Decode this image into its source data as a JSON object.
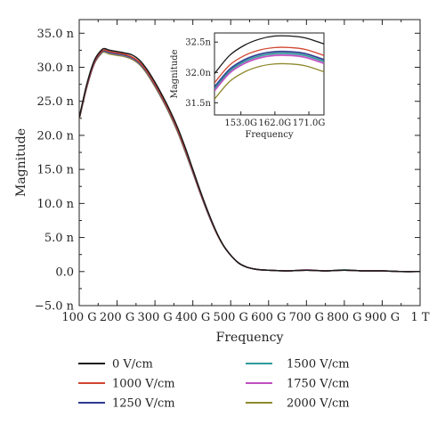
{
  "chart_data": [
    {
      "type": "line",
      "xlabel": "Frequency",
      "ylabel": "Magnitude",
      "xlim": [
        100,
        1000
      ],
      "ylim": [
        -5.0,
        37.0
      ],
      "xticks": [
        "100 G",
        "200 G",
        "300 G",
        "400 G",
        "500 G",
        "600 G",
        "700 G",
        "800 G",
        "900 G",
        "1 T"
      ],
      "yticks": [
        "−5.0 n",
        "0.0",
        "5.0 n",
        "10.0 n",
        "15.0 n",
        "20.0 n",
        "25.0 n",
        "30.0 n",
        "35.0 n"
      ],
      "grid": false,
      "legend_position": "bottom",
      "x_unit": "GHz",
      "y_unit": "n",
      "series": [
        {
          "name": "0 V/cm",
          "color": "#1a1a1a",
          "x": [
            100,
            120,
            140,
            160,
            170,
            180,
            200,
            220,
            240,
            260,
            280,
            300,
            320,
            340,
            360,
            380,
            400,
            420,
            440,
            460,
            480,
            500,
            520,
            540,
            560,
            580,
            600,
            650,
            700,
            750,
            800,
            850,
            900,
            950,
            1000
          ],
          "y": [
            22.6,
            27.5,
            31.0,
            32.6,
            32.7,
            32.5,
            32.3,
            32.1,
            31.8,
            31.0,
            29.6,
            27.8,
            25.8,
            23.6,
            21.1,
            18.2,
            15.0,
            11.8,
            8.8,
            6.1,
            3.9,
            2.4,
            1.3,
            0.7,
            0.4,
            0.25,
            0.2,
            0.1,
            0.2,
            0.1,
            0.2,
            0.1,
            0.1,
            0.0,
            0.0
          ]
        },
        {
          "name": "1000 V/cm",
          "color": "#d2442f",
          "x": [
            100,
            120,
            140,
            160,
            170,
            180,
            200,
            220,
            240,
            260,
            280,
            300,
            320,
            340,
            360,
            380,
            400,
            420,
            440,
            460,
            480,
            500,
            520,
            540,
            560,
            580,
            600,
            650,
            700,
            750,
            800,
            850,
            900,
            950,
            1000
          ],
          "y": [
            22.5,
            27.3,
            30.8,
            32.4,
            32.5,
            32.3,
            32.1,
            31.9,
            31.5,
            30.7,
            29.3,
            27.5,
            25.5,
            23.3,
            20.8,
            17.9,
            14.8,
            11.6,
            8.7,
            6.0,
            3.9,
            2.4,
            1.3,
            0.7,
            0.4,
            0.25,
            0.2,
            0.1,
            0.2,
            0.1,
            0.2,
            0.1,
            0.1,
            0.0,
            0.0
          ]
        },
        {
          "name": "1250 V/cm",
          "color": "#2c3a8f",
          "x": [
            100,
            120,
            140,
            160,
            170,
            180,
            200,
            220,
            240,
            260,
            280,
            300,
            320,
            340,
            360,
            380,
            400,
            420,
            440,
            460,
            480,
            500,
            520,
            540,
            560,
            580,
            600,
            650,
            700,
            750,
            800,
            850,
            900,
            950,
            1000
          ],
          "y": [
            22.5,
            27.2,
            30.7,
            32.3,
            32.4,
            32.2,
            32.0,
            31.8,
            31.4,
            30.6,
            29.2,
            27.4,
            25.4,
            23.2,
            20.7,
            17.8,
            14.7,
            11.5,
            8.6,
            6.0,
            3.9,
            2.4,
            1.3,
            0.7,
            0.4,
            0.25,
            0.2,
            0.1,
            0.2,
            0.1,
            0.2,
            0.1,
            0.1,
            0.0,
            0.0
          ]
        },
        {
          "name": "1500 V/cm",
          "color": "#2e9a9a",
          "x": [
            100,
            120,
            140,
            160,
            170,
            180,
            200,
            220,
            240,
            260,
            280,
            300,
            320,
            340,
            360,
            380,
            400,
            420,
            440,
            460,
            480,
            500,
            520,
            540,
            560,
            580,
            600,
            650,
            700,
            750,
            800,
            850,
            900,
            950,
            1000
          ],
          "y": [
            22.4,
            27.2,
            30.7,
            32.3,
            32.35,
            32.15,
            31.95,
            31.75,
            31.35,
            30.55,
            29.15,
            27.35,
            25.35,
            23.15,
            20.65,
            17.75,
            14.65,
            11.5,
            8.6,
            6.0,
            3.9,
            2.4,
            1.3,
            0.7,
            0.4,
            0.25,
            0.2,
            0.1,
            0.2,
            0.1,
            0.25,
            0.1,
            0.1,
            0.0,
            0.0
          ]
        },
        {
          "name": "1750 V/cm",
          "color": "#c14fc1",
          "x": [
            100,
            120,
            140,
            160,
            170,
            180,
            200,
            220,
            240,
            260,
            280,
            300,
            320,
            340,
            360,
            380,
            400,
            420,
            440,
            460,
            480,
            500,
            520,
            540,
            560,
            580,
            600,
            650,
            700,
            750,
            800,
            850,
            900,
            950,
            1000
          ],
          "y": [
            22.4,
            27.1,
            30.6,
            32.25,
            32.3,
            32.1,
            31.9,
            31.7,
            31.3,
            30.5,
            29.1,
            27.3,
            25.3,
            23.1,
            20.6,
            17.7,
            14.6,
            11.45,
            8.55,
            5.95,
            3.9,
            2.4,
            1.3,
            0.7,
            0.4,
            0.25,
            0.2,
            0.1,
            0.25,
            0.1,
            0.2,
            0.1,
            0.1,
            0.0,
            0.0
          ]
        },
        {
          "name": "2000 V/cm",
          "color": "#8f8a2e",
          "x": [
            100,
            120,
            140,
            160,
            170,
            180,
            200,
            220,
            240,
            260,
            280,
            300,
            320,
            340,
            360,
            380,
            400,
            420,
            440,
            460,
            480,
            500,
            520,
            540,
            560,
            580,
            600,
            650,
            700,
            750,
            800,
            850,
            900,
            950,
            1000
          ],
          "y": [
            22.3,
            27.0,
            30.5,
            32.1,
            32.15,
            31.95,
            31.75,
            31.55,
            31.15,
            30.35,
            28.95,
            27.15,
            25.15,
            22.95,
            20.45,
            17.55,
            14.5,
            11.4,
            8.5,
            5.9,
            3.85,
            2.4,
            1.3,
            0.7,
            0.4,
            0.25,
            0.2,
            0.1,
            0.2,
            0.1,
            0.2,
            0.1,
            0.1,
            0.0,
            0.0
          ]
        }
      ]
    },
    {
      "type": "line",
      "role": "inset",
      "xlabel": "Frequency",
      "ylabel": "Magnitude",
      "xlim": [
        146,
        175
      ],
      "ylim": [
        31.3,
        32.65
      ],
      "xticks": [
        "153.0G",
        "162.0G",
        "171.0G"
      ],
      "yticks": [
        "31.5n",
        "32.0n",
        "32.5n"
      ],
      "grid": false,
      "series": [
        {
          "name": "0 V/cm",
          "color": "#1a1a1a",
          "x": [
            146,
            150,
            154,
            158,
            162,
            166,
            170,
            175
          ],
          "y": [
            31.98,
            32.28,
            32.45,
            32.55,
            32.6,
            32.6,
            32.57,
            32.47
          ]
        },
        {
          "name": "1000 V/cm",
          "color": "#d2442f",
          "x": [
            146,
            150,
            154,
            158,
            162,
            166,
            170,
            175
          ],
          "y": [
            31.83,
            32.12,
            32.28,
            32.37,
            32.41,
            32.41,
            32.38,
            32.28
          ]
        },
        {
          "name": "1250 V/cm",
          "color": "#2c3a8f",
          "x": [
            146,
            150,
            154,
            158,
            162,
            166,
            170,
            175
          ],
          "y": [
            31.76,
            32.05,
            32.21,
            32.3,
            32.34,
            32.34,
            32.31,
            32.21
          ]
        },
        {
          "name": "1500 V/cm",
          "color": "#2e9a9a",
          "x": [
            146,
            150,
            154,
            158,
            162,
            166,
            170,
            175
          ],
          "y": [
            31.73,
            32.02,
            32.18,
            32.27,
            32.31,
            32.31,
            32.28,
            32.18
          ]
        },
        {
          "name": "1750 V/cm",
          "color": "#c14fc1",
          "x": [
            146,
            150,
            154,
            158,
            162,
            166,
            170,
            175
          ],
          "y": [
            31.7,
            31.99,
            32.15,
            32.24,
            32.28,
            32.28,
            32.25,
            32.15
          ]
        },
        {
          "name": "2000 V/cm",
          "color": "#8f8a2e",
          "x": [
            146,
            150,
            154,
            158,
            162,
            166,
            170,
            175
          ],
          "y": [
            31.56,
            31.85,
            32.01,
            32.1,
            32.14,
            32.14,
            32.11,
            32.01
          ]
        }
      ]
    }
  ]
}
